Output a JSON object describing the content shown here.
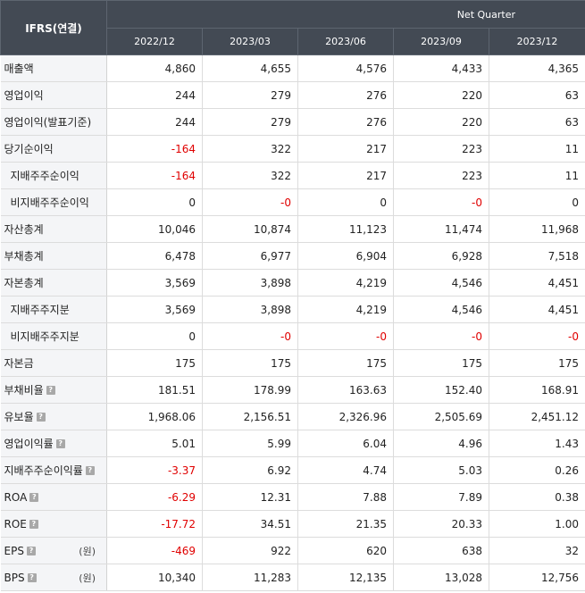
{
  "header": {
    "corner": "IFRS(연결)",
    "group": "Net Quarter",
    "periods": [
      "2022/12",
      "2023/03",
      "2023/06",
      "2023/09",
      "2023/12"
    ]
  },
  "rows": [
    {
      "label": "매출액",
      "values": [
        "4,860",
        "4,655",
        "4,576",
        "4,433",
        "4,365"
      ]
    },
    {
      "label": "영업이익",
      "values": [
        "244",
        "279",
        "276",
        "220",
        "63"
      ]
    },
    {
      "label": "영업이익(발표기준)",
      "values": [
        "244",
        "279",
        "276",
        "220",
        "63"
      ]
    },
    {
      "label": "당기순이익",
      "values": [
        "-164",
        "322",
        "217",
        "223",
        "11"
      ]
    },
    {
      "label": "지배주주순이익",
      "values": [
        "-164",
        "322",
        "217",
        "223",
        "11"
      ]
    },
    {
      "label": "비지배주주순이익",
      "values": [
        "0",
        "-0",
        "0",
        "-0",
        "0"
      ]
    },
    {
      "label": "자산총계",
      "values": [
        "10,046",
        "10,874",
        "11,123",
        "11,474",
        "11,968"
      ]
    },
    {
      "label": "부채총계",
      "values": [
        "6,478",
        "6,977",
        "6,904",
        "6,928",
        "7,518"
      ]
    },
    {
      "label": "자본총계",
      "values": [
        "3,569",
        "3,898",
        "4,219",
        "4,546",
        "4,451"
      ]
    },
    {
      "label": "지배주주지분",
      "values": [
        "3,569",
        "3,898",
        "4,219",
        "4,546",
        "4,451"
      ]
    },
    {
      "label": "비지배주주지분",
      "values": [
        "0",
        "-0",
        "-0",
        "-0",
        "-0"
      ]
    },
    {
      "label": "자본금",
      "values": [
        "175",
        "175",
        "175",
        "175",
        "175"
      ]
    },
    {
      "label": "부채비율",
      "values": [
        "181.51",
        "178.99",
        "163.63",
        "152.40",
        "168.91"
      ]
    },
    {
      "label": "유보율",
      "values": [
        "1,968.06",
        "2,156.51",
        "2,326.96",
        "2,505.69",
        "2,451.12"
      ]
    },
    {
      "label": "영업이익률",
      "values": [
        "5.01",
        "5.99",
        "6.04",
        "4.96",
        "1.43"
      ]
    },
    {
      "label": "지배주주순이익률",
      "values": [
        "-3.37",
        "6.92",
        "4.74",
        "5.03",
        "0.26"
      ]
    },
    {
      "label": "ROA",
      "values": [
        "-6.29",
        "12.31",
        "7.88",
        "7.89",
        "0.38"
      ]
    },
    {
      "label": "ROE",
      "values": [
        "-17.72",
        "34.51",
        "21.35",
        "20.33",
        "1.00"
      ]
    },
    {
      "label": "EPS",
      "unit": "(원)",
      "values": [
        "-469",
        "922",
        "620",
        "638",
        "32"
      ]
    },
    {
      "label": "BPS",
      "unit": "(원)",
      "values": [
        "10,340",
        "11,283",
        "12,135",
        "13,028",
        "12,756"
      ]
    }
  ],
  "info_icon_glyph": "?",
  "colors": {
    "header_bg": "#434a54",
    "label_bg": "#f4f5f7",
    "negative": "#e00000",
    "icon_bg": "#a8a8a8"
  }
}
